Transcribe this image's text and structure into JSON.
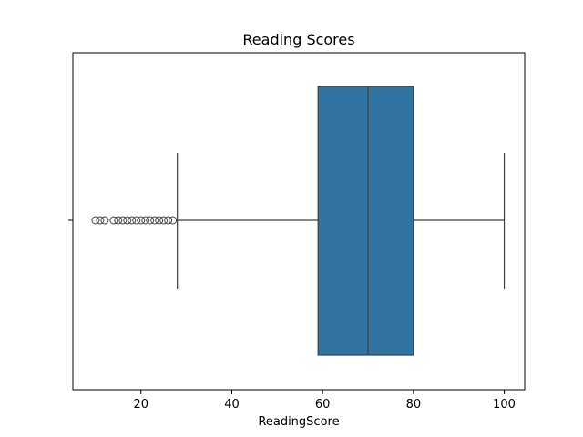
{
  "chart_data": {
    "type": "box",
    "title": "Reading Scores",
    "xlabel": "ReadingScore",
    "ylabel": "",
    "xlim": [
      5,
      104.5
    ],
    "xticks": [
      20,
      40,
      60,
      80,
      100
    ],
    "box": {
      "q1": 59,
      "median": 70,
      "q3": 80,
      "whisker_low": 28,
      "whisker_high": 100
    },
    "outliers": [
      10,
      11,
      12,
      14,
      15,
      16,
      17,
      18,
      19,
      20,
      21,
      22,
      23,
      24,
      25,
      26,
      27
    ],
    "colors": {
      "box_fill": "#3274a1",
      "line": "#3f3f3f",
      "axis": "#000000"
    }
  }
}
